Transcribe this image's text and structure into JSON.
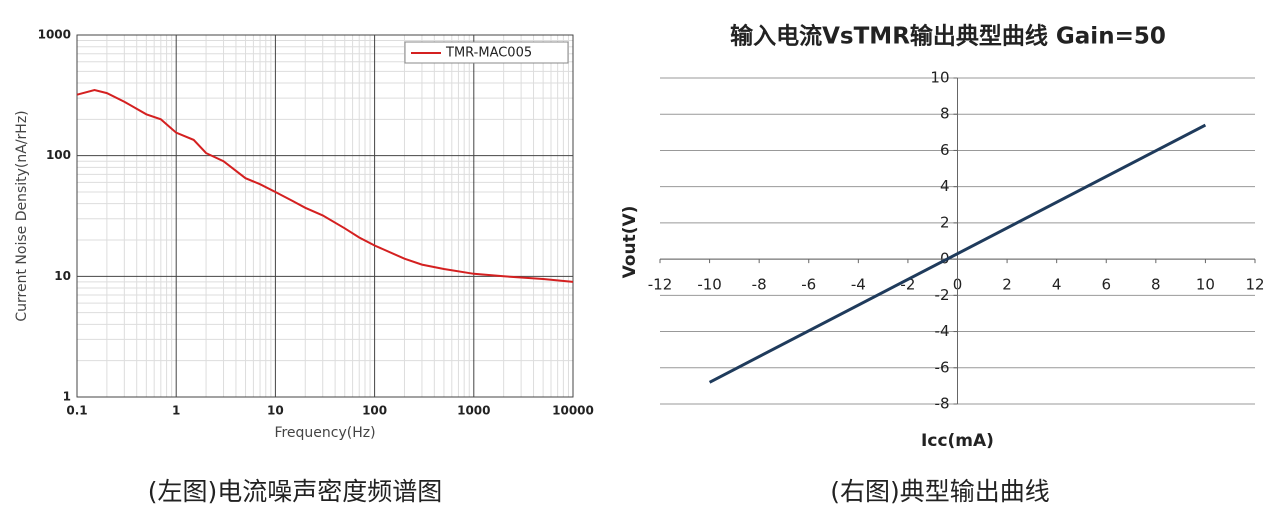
{
  "chart_data": [
    {
      "type": "line",
      "xlabel": "Frequency(Hz)",
      "ylabel": "Current Noise Density(nA/rHz)",
      "x": [
        0.1,
        0.15,
        0.2,
        0.3,
        0.5,
        0.7,
        1,
        1.5,
        2,
        3,
        5,
        7,
        10,
        15,
        20,
        30,
        50,
        70,
        100,
        200,
        300,
        500,
        1000,
        2000,
        5000,
        10000
      ],
      "series": [
        {
          "name": "TMR-MAC005",
          "color": "#d42020",
          "values": [
            320,
            350,
            330,
            280,
            220,
            200,
            155,
            135,
            105,
            90,
            65,
            58,
            50,
            42,
            37,
            32,
            25,
            21,
            18,
            14,
            12.5,
            11.5,
            10.5,
            10,
            9.5,
            9
          ]
        }
      ],
      "xscale": "log",
      "yscale": "log",
      "xlim": [
        0.1,
        10000
      ],
      "xticks": [
        0.1,
        1,
        10,
        100,
        1000,
        10000
      ],
      "ylim": [
        1,
        1000
      ],
      "yticks": [
        1,
        10,
        100,
        1000
      ],
      "grid": true,
      "legend": "upper right",
      "caption": "(左图)电流噪声密度频谱图"
    },
    {
      "type": "line",
      "title": "输入电流VsTMR输出典型曲线 Gain=50",
      "xlabel": "Icc(mA)",
      "ylabel": "Vout(V)",
      "x": [
        -10,
        10
      ],
      "series": [
        {
          "color": "#1f3b5c",
          "values": [
            -6.8,
            7.4
          ]
        }
      ],
      "xlim": [
        -12,
        12
      ],
      "xticks": [
        -12,
        -10,
        -8,
        -6,
        -4,
        -2,
        0,
        2,
        4,
        6,
        8,
        10,
        12
      ],
      "ylim": [
        -8,
        10
      ],
      "yticks": [
        -8,
        -6,
        -4,
        -2,
        0,
        2,
        4,
        6,
        8,
        10
      ],
      "grid": true,
      "axes_cross_at_zero": true,
      "caption": "(右图)典型输出曲线"
    }
  ]
}
